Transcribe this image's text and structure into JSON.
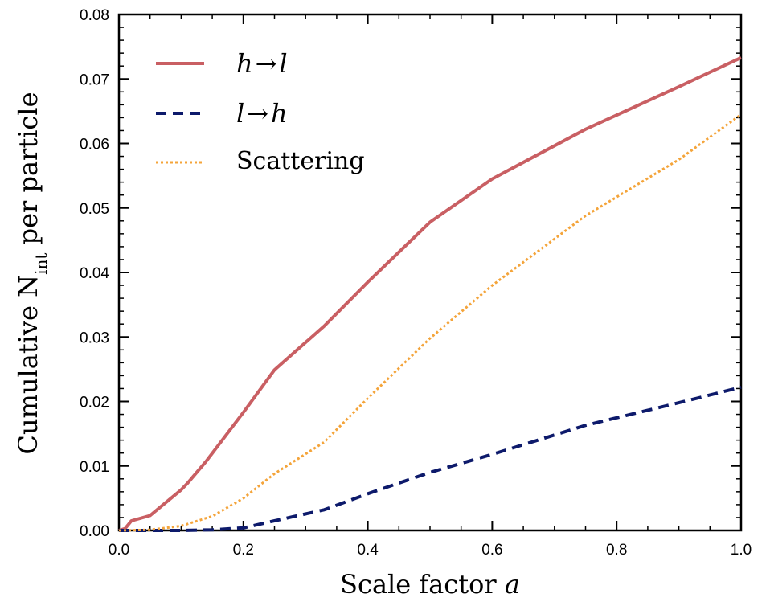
{
  "chart_data": {
    "type": "line",
    "title": "",
    "xlabel": "Scale factor",
    "xlabel_var": "a",
    "ylabel": "Cumulative N",
    "ylabel_sub": "int",
    "ylabel_suffix": " per particle",
    "xlim": [
      0.0,
      1.0
    ],
    "ylim": [
      0.0,
      0.08
    ],
    "x_ticks": [
      "0.0",
      "0.2",
      "0.4",
      "0.6",
      "0.8",
      "1.0"
    ],
    "y_ticks": [
      "0.00",
      "0.01",
      "0.02",
      "0.03",
      "0.04",
      "0.05",
      "0.06",
      "0.07",
      "0.08"
    ],
    "grid": false,
    "legend_position": "top-left",
    "series": [
      {
        "name": "h→l",
        "label_left": "h",
        "label_right": "l",
        "color": "#c95f63",
        "style": "solid",
        "x": [
          0.0,
          0.01,
          0.02,
          0.05,
          0.1,
          0.11,
          0.14,
          0.2,
          0.25,
          0.33,
          0.4,
          0.5,
          0.6,
          0.75,
          0.9,
          1.0
        ],
        "y": [
          0.0,
          0.0003,
          0.0015,
          0.0023,
          0.0063,
          0.0073,
          0.0107,
          0.0183,
          0.0249,
          0.0317,
          0.0385,
          0.0478,
          0.0545,
          0.0622,
          0.0688,
          0.0733
        ]
      },
      {
        "name": "l→h",
        "label_left": "l",
        "label_right": "h",
        "color": "#0d1a6b",
        "style": "dashed",
        "x": [
          0.0,
          0.1,
          0.15,
          0.2,
          0.25,
          0.33,
          0.4,
          0.5,
          0.6,
          0.75,
          0.9,
          1.0
        ],
        "y": [
          0.0,
          0.0,
          0.0001,
          0.0004,
          0.0015,
          0.0032,
          0.0057,
          0.009,
          0.0118,
          0.0163,
          0.0198,
          0.0222
        ]
      },
      {
        "name": "Scattering",
        "color": "#f4a43a",
        "style": "dotted",
        "x": [
          0.0,
          0.05,
          0.1,
          0.15,
          0.2,
          0.25,
          0.33,
          0.4,
          0.5,
          0.6,
          0.75,
          0.9,
          1.0
        ],
        "y": [
          0.0,
          0.0001,
          0.0007,
          0.0022,
          0.005,
          0.0088,
          0.0137,
          0.0205,
          0.0298,
          0.038,
          0.0488,
          0.0575,
          0.0645
        ]
      }
    ]
  }
}
